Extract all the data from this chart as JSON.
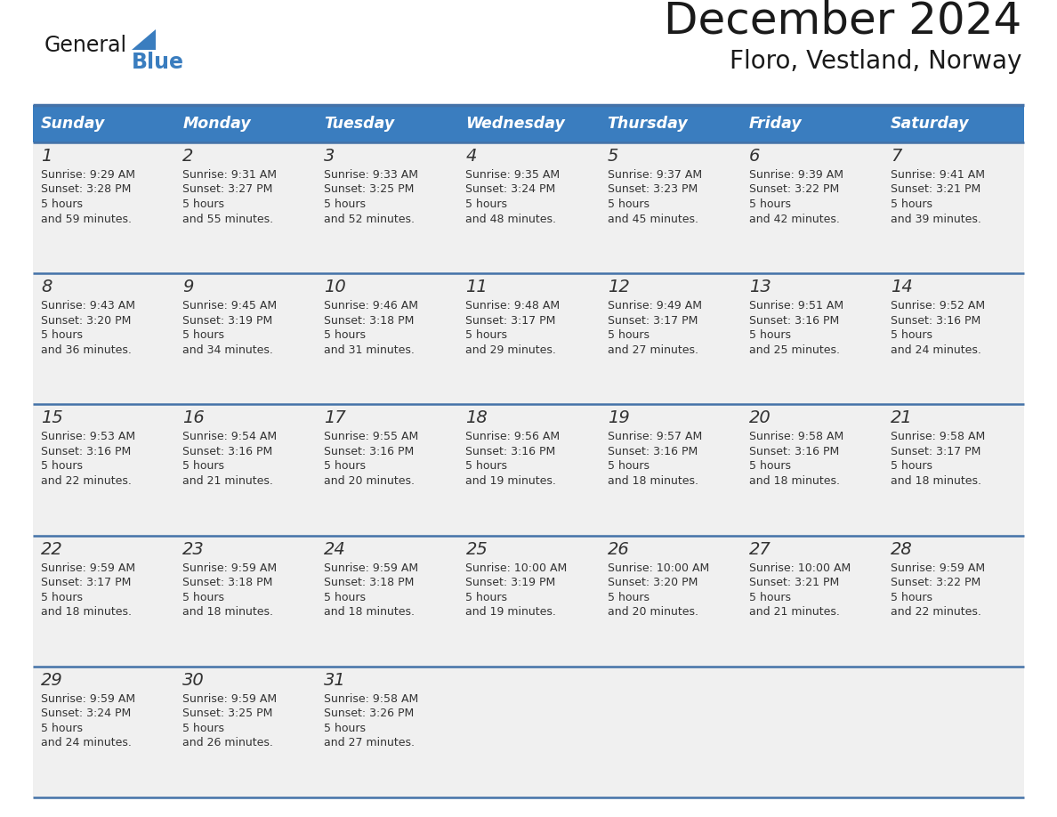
{
  "title": "December 2024",
  "subtitle": "Floro, Vestland, Norway",
  "days_of_week": [
    "Sunday",
    "Monday",
    "Tuesday",
    "Wednesday",
    "Thursday",
    "Friday",
    "Saturday"
  ],
  "header_bg": "#3a7dbf",
  "header_text_color": "#ffffff",
  "cell_bg": "#f0f0f0",
  "cell_border_color": "#4472a8",
  "text_color": "#333333",
  "title_color": "#1a1a1a",
  "logo_general_color": "#1a1a1a",
  "logo_blue_color": "#3a7dbf",
  "weeks": [
    [
      {
        "day": 1,
        "sunrise": "9:29 AM",
        "sunset": "3:28 PM",
        "daylight": "5 hours and 59 minutes."
      },
      {
        "day": 2,
        "sunrise": "9:31 AM",
        "sunset": "3:27 PM",
        "daylight": "5 hours and 55 minutes."
      },
      {
        "day": 3,
        "sunrise": "9:33 AM",
        "sunset": "3:25 PM",
        "daylight": "5 hours and 52 minutes."
      },
      {
        "day": 4,
        "sunrise": "9:35 AM",
        "sunset": "3:24 PM",
        "daylight": "5 hours and 48 minutes."
      },
      {
        "day": 5,
        "sunrise": "9:37 AM",
        "sunset": "3:23 PM",
        "daylight": "5 hours and 45 minutes."
      },
      {
        "day": 6,
        "sunrise": "9:39 AM",
        "sunset": "3:22 PM",
        "daylight": "5 hours and 42 minutes."
      },
      {
        "day": 7,
        "sunrise": "9:41 AM",
        "sunset": "3:21 PM",
        "daylight": "5 hours and 39 minutes."
      }
    ],
    [
      {
        "day": 8,
        "sunrise": "9:43 AM",
        "sunset": "3:20 PM",
        "daylight": "5 hours and 36 minutes."
      },
      {
        "day": 9,
        "sunrise": "9:45 AM",
        "sunset": "3:19 PM",
        "daylight": "5 hours and 34 minutes."
      },
      {
        "day": 10,
        "sunrise": "9:46 AM",
        "sunset": "3:18 PM",
        "daylight": "5 hours and 31 minutes."
      },
      {
        "day": 11,
        "sunrise": "9:48 AM",
        "sunset": "3:17 PM",
        "daylight": "5 hours and 29 minutes."
      },
      {
        "day": 12,
        "sunrise": "9:49 AM",
        "sunset": "3:17 PM",
        "daylight": "5 hours and 27 minutes."
      },
      {
        "day": 13,
        "sunrise": "9:51 AM",
        "sunset": "3:16 PM",
        "daylight": "5 hours and 25 minutes."
      },
      {
        "day": 14,
        "sunrise": "9:52 AM",
        "sunset": "3:16 PM",
        "daylight": "5 hours and 24 minutes."
      }
    ],
    [
      {
        "day": 15,
        "sunrise": "9:53 AM",
        "sunset": "3:16 PM",
        "daylight": "5 hours and 22 minutes."
      },
      {
        "day": 16,
        "sunrise": "9:54 AM",
        "sunset": "3:16 PM",
        "daylight": "5 hours and 21 minutes."
      },
      {
        "day": 17,
        "sunrise": "9:55 AM",
        "sunset": "3:16 PM",
        "daylight": "5 hours and 20 minutes."
      },
      {
        "day": 18,
        "sunrise": "9:56 AM",
        "sunset": "3:16 PM",
        "daylight": "5 hours and 19 minutes."
      },
      {
        "day": 19,
        "sunrise": "9:57 AM",
        "sunset": "3:16 PM",
        "daylight": "5 hours and 18 minutes."
      },
      {
        "day": 20,
        "sunrise": "9:58 AM",
        "sunset": "3:16 PM",
        "daylight": "5 hours and 18 minutes."
      },
      {
        "day": 21,
        "sunrise": "9:58 AM",
        "sunset": "3:17 PM",
        "daylight": "5 hours and 18 minutes."
      }
    ],
    [
      {
        "day": 22,
        "sunrise": "9:59 AM",
        "sunset": "3:17 PM",
        "daylight": "5 hours and 18 minutes."
      },
      {
        "day": 23,
        "sunrise": "9:59 AM",
        "sunset": "3:18 PM",
        "daylight": "5 hours and 18 minutes."
      },
      {
        "day": 24,
        "sunrise": "9:59 AM",
        "sunset": "3:18 PM",
        "daylight": "5 hours and 18 minutes."
      },
      {
        "day": 25,
        "sunrise": "10:00 AM",
        "sunset": "3:19 PM",
        "daylight": "5 hours and 19 minutes."
      },
      {
        "day": 26,
        "sunrise": "10:00 AM",
        "sunset": "3:20 PM",
        "daylight": "5 hours and 20 minutes."
      },
      {
        "day": 27,
        "sunrise": "10:00 AM",
        "sunset": "3:21 PM",
        "daylight": "5 hours and 21 minutes."
      },
      {
        "day": 28,
        "sunrise": "9:59 AM",
        "sunset": "3:22 PM",
        "daylight": "5 hours and 22 minutes."
      }
    ],
    [
      {
        "day": 29,
        "sunrise": "9:59 AM",
        "sunset": "3:24 PM",
        "daylight": "5 hours and 24 minutes."
      },
      {
        "day": 30,
        "sunrise": "9:59 AM",
        "sunset": "3:25 PM",
        "daylight": "5 hours and 26 minutes."
      },
      {
        "day": 31,
        "sunrise": "9:58 AM",
        "sunset": "3:26 PM",
        "daylight": "5 hours and 27 minutes."
      },
      null,
      null,
      null,
      null
    ]
  ],
  "fig_width": 11.88,
  "fig_height": 9.18,
  "dpi": 100
}
